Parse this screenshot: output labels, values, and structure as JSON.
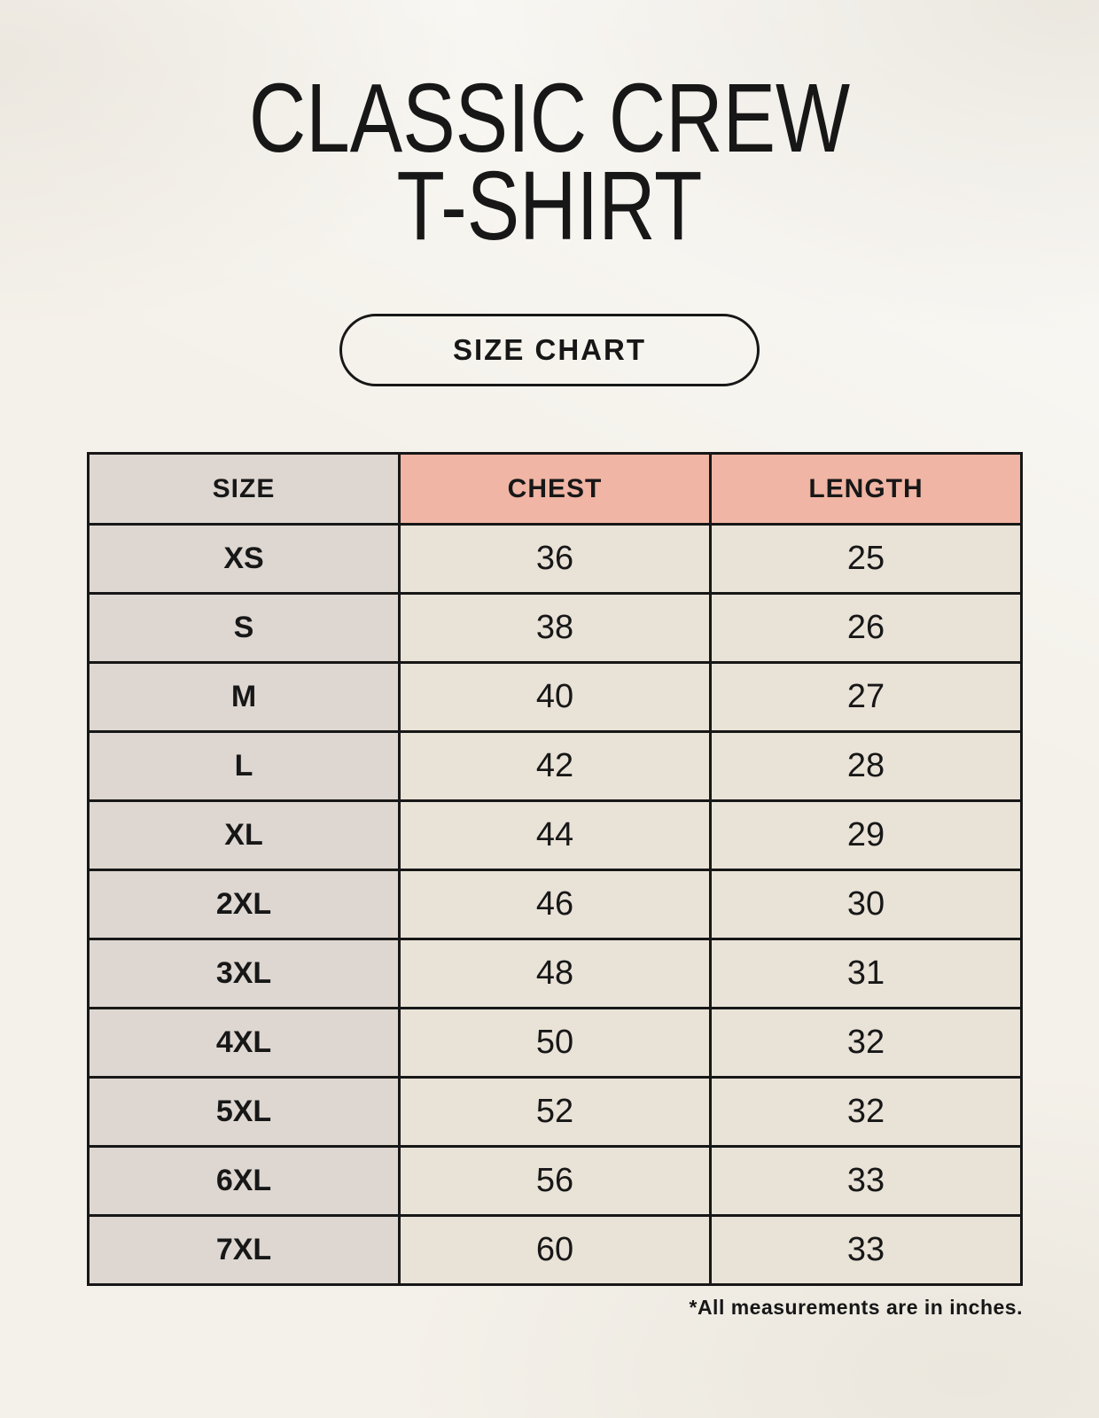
{
  "header": {
    "title_line1": "CLASSIC CREW",
    "title_line2": "T-SHIRT",
    "badge_label": "SIZE CHART"
  },
  "footnote": {
    "text": "*All measurements are in inches."
  },
  "colors": {
    "background": "#f4f1ea",
    "header_accent": "#f0b5a4",
    "size_column": "#ded7d1",
    "cell": "#e9e2d7",
    "border": "#171717",
    "text": "#171717"
  },
  "chart_data": {
    "type": "table",
    "title": "CLASSIC CREW T-SHIRT",
    "subtitle": "SIZE CHART",
    "units_note": "*All measurements are in inches.",
    "columns": [
      "SIZE",
      "CHEST",
      "LENGTH"
    ],
    "rows": [
      [
        "XS",
        "36",
        "25"
      ],
      [
        "S",
        "38",
        "26"
      ],
      [
        "M",
        "40",
        "27"
      ],
      [
        "L",
        "42",
        "28"
      ],
      [
        "XL",
        "44",
        "29"
      ],
      [
        "2XL",
        "46",
        "30"
      ],
      [
        "3XL",
        "48",
        "31"
      ],
      [
        "4XL",
        "50",
        "32"
      ],
      [
        "5XL",
        "52",
        "32"
      ],
      [
        "6XL",
        "56",
        "33"
      ],
      [
        "7XL",
        "60",
        "33"
      ]
    ]
  }
}
